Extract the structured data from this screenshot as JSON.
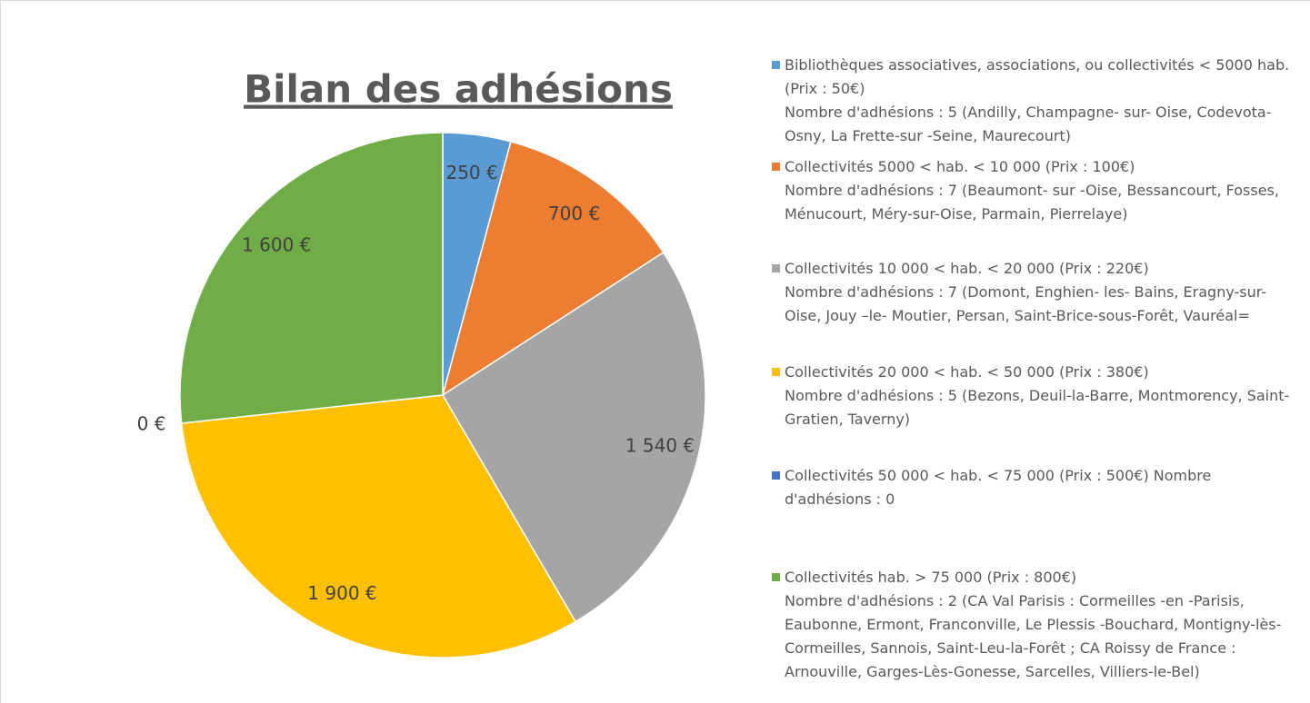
{
  "chart_data": {
    "type": "pie",
    "title": "Bilan des adhésions",
    "series": [
      {
        "name": "Bibliothèques associatives, associations, ou collectivités < 5000 hab.(Prix : 50€)\nNombre d'adhésions : 5 (Andilly, Champagne- sur- Oise, Codevota-Osny, La Frette-sur -Seine, Maurecourt)",
        "color": "#5b9bd5",
        "values": [
          250
        ],
        "value_labels": [
          "250 €"
        ]
      },
      {
        "name": "Collectivités 5000 < hab. < 10 000 (Prix : 100€)\nNombre d'adhésions : 7 (Beaumont- sur -Oise, Bessancourt, Fosses, Ménucourt, Méry-sur-Oise, Parmain, Pierrelaye)",
        "color": "#ed7d31",
        "values": [
          700
        ],
        "value_labels": [
          "700 €"
        ]
      },
      {
        "name": "Collectivités 10 000 < hab. < 20 000 (Prix : 220€)\nNombre d'adhésions : 7 (Domont, Enghien- les- Bains, Eragny-sur-Oise, Jouy –le- Moutier, Persan, Saint-Brice-sous-Forêt, Vauréal=",
        "color": "#a5a5a5",
        "values": [
          1540
        ],
        "value_labels": [
          "1 540 €"
        ]
      },
      {
        "name": "Collectivités 20 000 < hab. < 50 000 (Prix : 380€)\nNombre d'adhésions : 5 (Bezons, Deuil-la-Barre, Montmorency, Saint-Gratien, Taverny)",
        "color": "#ffc000",
        "values": [
          1900
        ],
        "value_labels": [
          "1 900 €"
        ]
      },
      {
        "name": "Collectivités 50 000 < hab. < 75 000 (Prix : 500€) Nombre d'adhésions : 0",
        "color": "#4472c4",
        "values": [
          0
        ],
        "value_labels": [
          "0 €"
        ]
      },
      {
        "name": "Collectivités hab. > 75 000 (Prix : 800€)\nNombre d'adhésions : 2 (CA Val Parisis : Cormeilles -en -Parisis, Eaubonne, Ermont, Franconville, Le Plessis -Bouchard, Montigny-lès-Cormeilles, Sannois, Saint-Leu-la-Forêt ; CA Roissy de France : Arnouville, Garges-Lès-Gonesse, Sarcelles, Villiers-le-Bel)",
        "color": "#70ad47",
        "values": [
          1600
        ],
        "value_labels": [
          "1 600 €"
        ]
      }
    ]
  }
}
